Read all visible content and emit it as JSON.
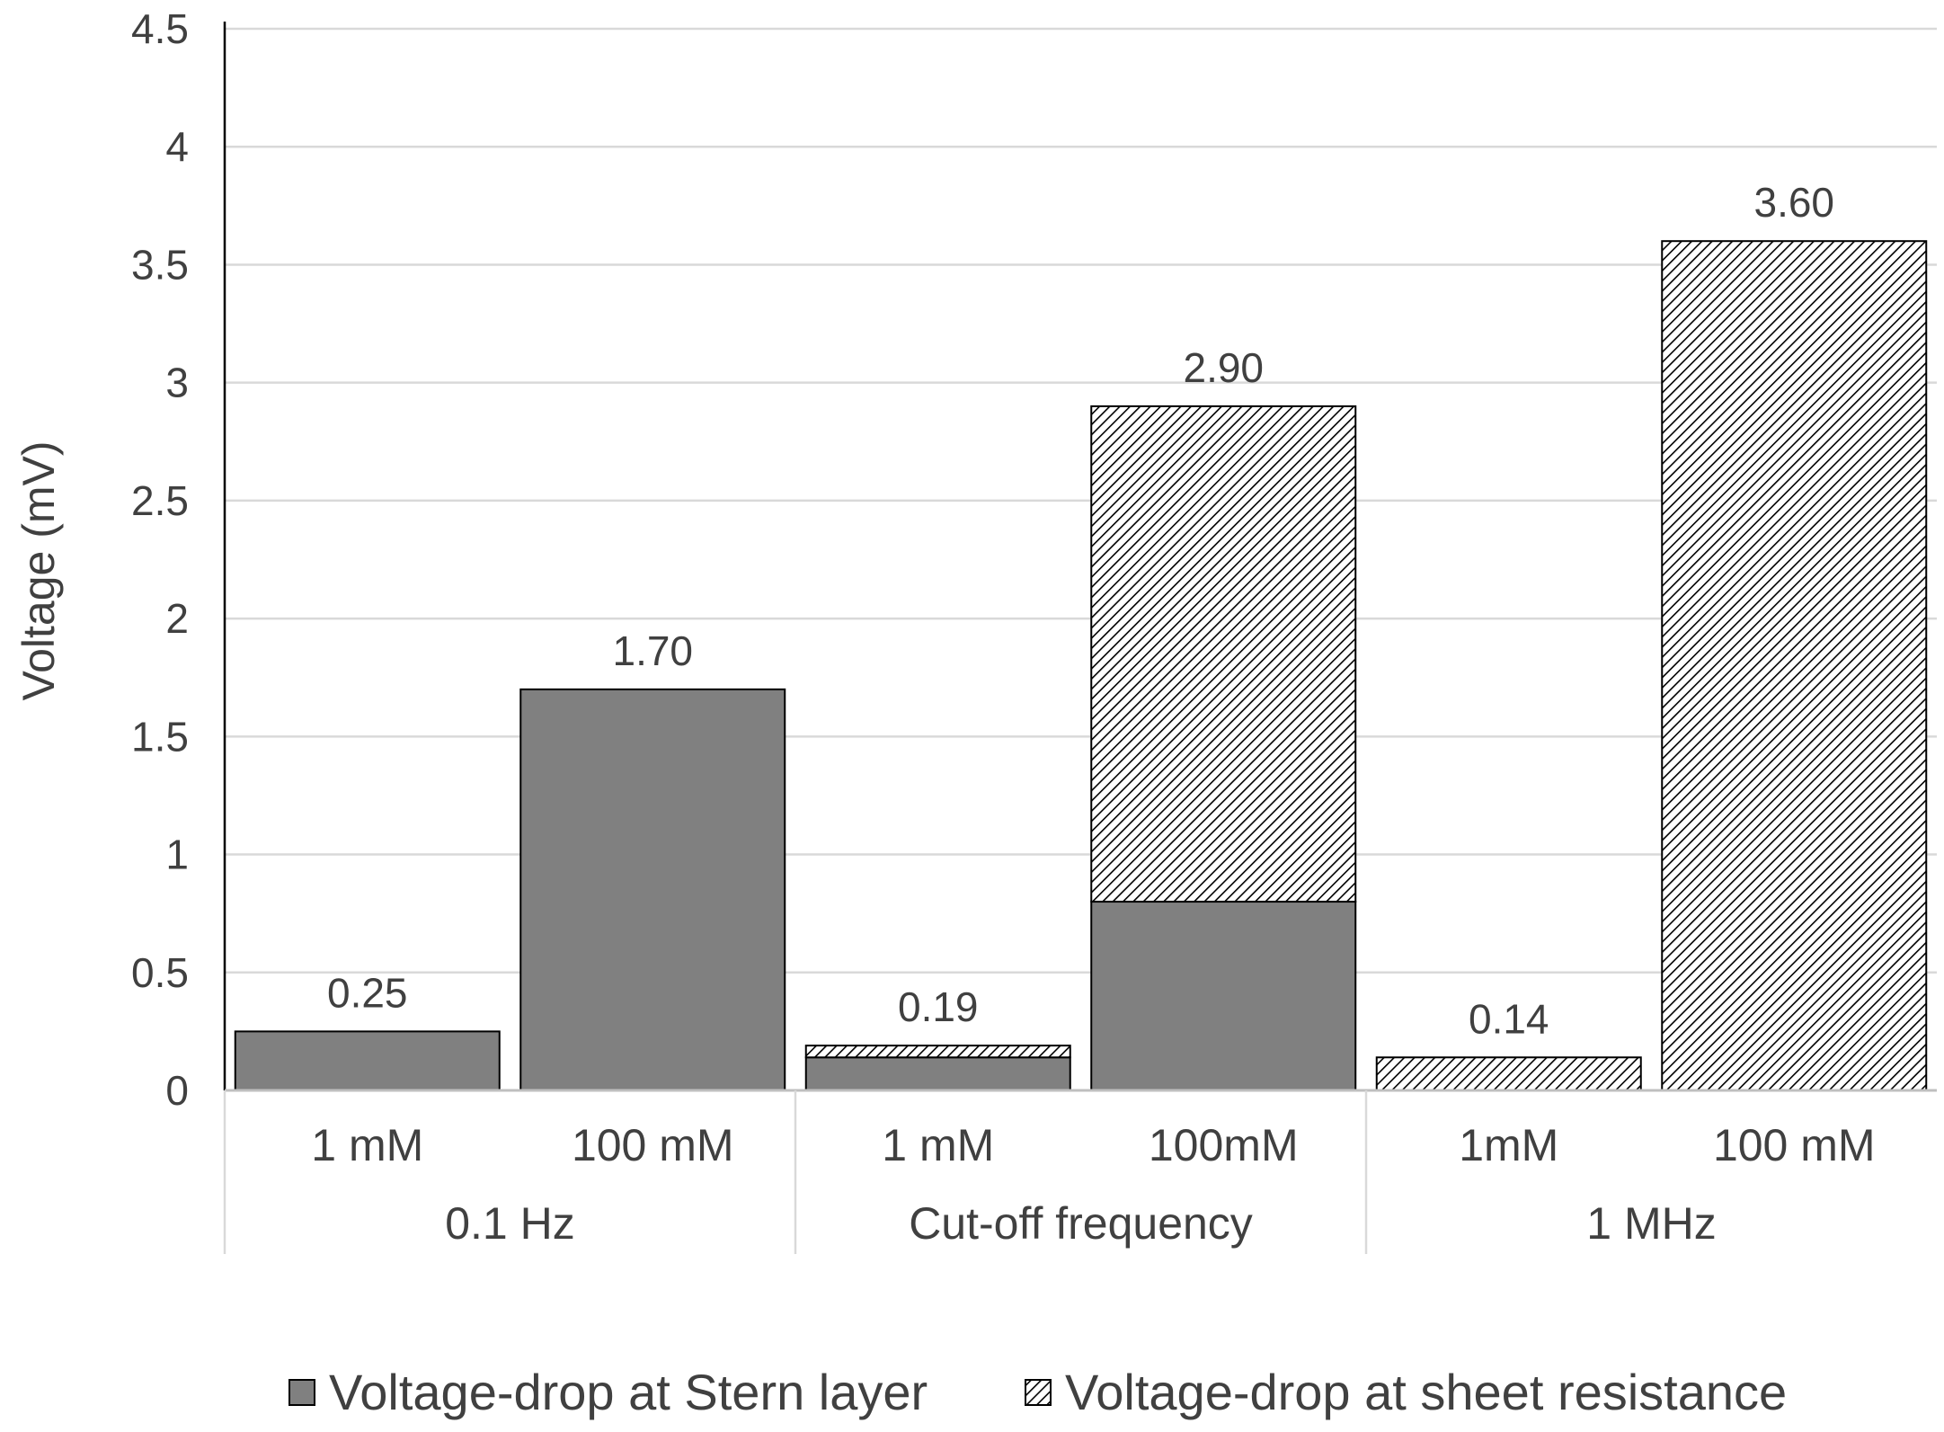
{
  "chart_data": {
    "type": "bar",
    "stacked": true,
    "title": "",
    "xlabel": "",
    "ylabel": "Voltage (mV)",
    "ylim": [
      0,
      4.5
    ],
    "yticks": [
      0,
      0.5,
      1,
      1.5,
      2,
      2.5,
      3,
      3.5,
      4,
      4.5
    ],
    "ytick_labels": [
      "0",
      "0.5",
      "1",
      "1.5",
      "2",
      "2.5",
      "3",
      "3.5",
      "4",
      "4.5"
    ],
    "grid": true,
    "categories": [
      "1 mM",
      "100 mM",
      "1 mM",
      "100mM",
      "1mM",
      "100 mM"
    ],
    "groups": [
      {
        "label": "0.1 Hz",
        "span": 2
      },
      {
        "label": "Cut-off frequency",
        "span": 2
      },
      {
        "label": "1 MHz",
        "span": 2
      }
    ],
    "series": [
      {
        "name": "Voltage-drop at Stern layer",
        "pattern": "solid",
        "color": "#808080",
        "values": [
          0.25,
          1.7,
          0.14,
          0.8,
          0,
          0
        ]
      },
      {
        "name": "Voltage-drop at sheet resistance",
        "pattern": "hatched",
        "color": "#ffffff",
        "values": [
          0,
          0,
          0.05,
          2.1,
          0.14,
          3.6
        ]
      }
    ],
    "data_labels": [
      "0.25",
      "1.70",
      "0.19",
      "2.90",
      "0.14",
      "3.60"
    ],
    "legend_position": "bottom"
  }
}
